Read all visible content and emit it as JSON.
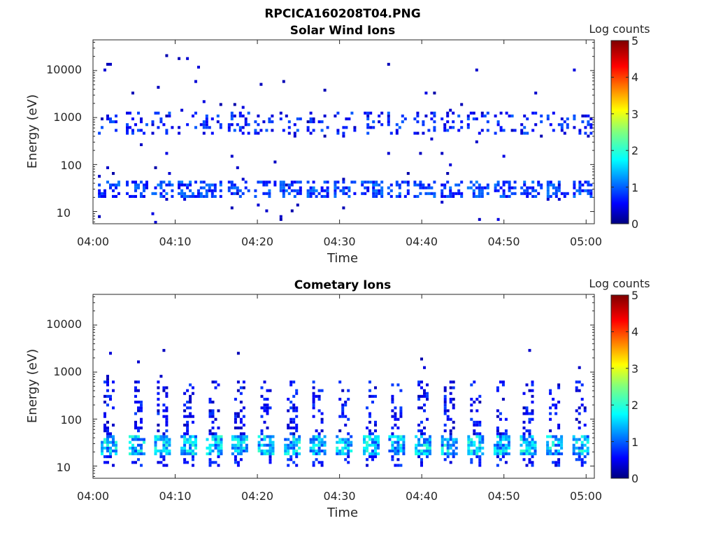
{
  "figure": {
    "filename_title": "RPCICA160208T04.PNG"
  },
  "chart_data": [
    {
      "type": "heatmap",
      "title": "Solar Wind Ions",
      "xlabel": "Time",
      "ylabel": "Energy (eV)",
      "y_scale": "log",
      "x_ticks": [
        "04:00",
        "04:10",
        "04:20",
        "04:30",
        "04:40",
        "04:50",
        "05:00"
      ],
      "y_ticks": [
        "10",
        "100",
        "1000",
        "10000"
      ],
      "xlim_minutes": [
        0,
        61
      ],
      "ylim_eV": [
        5.5,
        45000
      ],
      "colorbar": {
        "label": "Log counts",
        "ticks": [
          "0",
          "1",
          "2",
          "3",
          "4",
          "5"
        ],
        "range": [
          0,
          5
        ],
        "colormap": "jet"
      },
      "features": {
        "scan_centers_min": [
          1.8,
          5.2,
          8.3,
          11.5,
          14.2,
          17.6,
          20.8,
          23.9,
          27.2,
          30.5,
          33.8,
          37.0,
          40.2,
          43.5,
          46.7,
          50.0,
          53.2,
          56.4,
          59.6
        ],
        "low_energy_band_eV": [
          18,
          45
        ],
        "low_energy_level": 0.9,
        "high_energy_band_eV": [
          400,
          1300
        ],
        "high_energy_level": 0.8,
        "sparse_max_eV": 20000
      }
    },
    {
      "type": "heatmap",
      "title": "Cometary Ions",
      "xlabel": "Time",
      "ylabel": "Energy (eV)",
      "y_scale": "log",
      "x_ticks": [
        "04:00",
        "04:10",
        "04:20",
        "04:30",
        "04:40",
        "04:50",
        "05:00"
      ],
      "y_ticks": [
        "10",
        "100",
        "1000",
        "10000"
      ],
      "xlim_minutes": [
        0,
        61
      ],
      "ylim_eV": [
        5.5,
        45000
      ],
      "colorbar": {
        "label": "Log counts",
        "ticks": [
          "0",
          "1",
          "2",
          "3",
          "4",
          "5"
        ],
        "range": [
          0,
          5
        ],
        "colormap": "jet"
      },
      "features": {
        "scan_centers_min": [
          1.8,
          5.2,
          8.3,
          11.5,
          14.6,
          17.7,
          20.9,
          24.1,
          27.2,
          30.4,
          33.7,
          36.8,
          40.0,
          43.2,
          46.4,
          49.6,
          52.8,
          56.0,
          59.2
        ],
        "core_band_eV": [
          16,
          45
        ],
        "core_level": 1.8,
        "tail_max_eV": 600,
        "tail_level": 0.6,
        "sparse_max_eV": 3000
      }
    }
  ]
}
